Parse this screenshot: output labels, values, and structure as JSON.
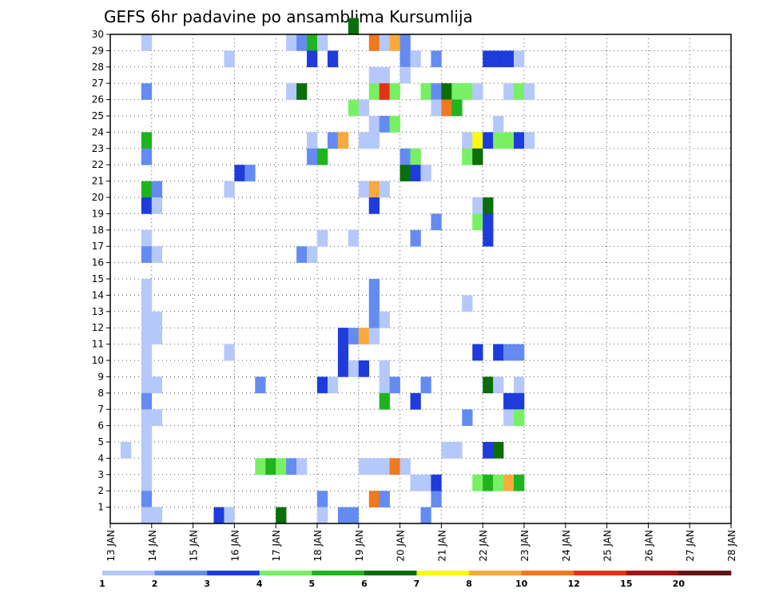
{
  "chart_data": {
    "type": "heatmap",
    "title": "GEFS 6hr padavine po ansamblima Kursumlija",
    "xlabel": "",
    "ylabel": "",
    "x_tick_labels": [
      "13 JAN",
      "14 JAN",
      "15 JAN",
      "16 JAN",
      "17 JAN",
      "18 JAN",
      "19 JAN",
      "20 JAN",
      "21 JAN",
      "22 JAN",
      "23 JAN",
      "24 JAN",
      "25 JAN",
      "26 JAN",
      "27 JAN",
      "28 JAN"
    ],
    "y_tick_labels": [
      "1",
      "2",
      "3",
      "4",
      "5",
      "6",
      "7",
      "8",
      "9",
      "10",
      "11",
      "12",
      "13",
      "14",
      "15",
      "16",
      "17",
      "18",
      "19",
      "20",
      "21",
      "22",
      "23",
      "24",
      "25",
      "26",
      "27",
      "28",
      "29",
      "30"
    ],
    "x_range": [
      0,
      60
    ],
    "y_range": [
      0,
      30
    ],
    "grid": true,
    "colorbar": {
      "labels": [
        "1",
        "2",
        "3",
        "4",
        "5",
        "6",
        "7",
        "8",
        "10",
        "12",
        "15",
        "20"
      ],
      "colors": [
        "#b4c8fa",
        "#648cf0",
        "#1e3cdc",
        "#78f064",
        "#1eb41e",
        "#0a6e0a",
        "#fafa14",
        "#faaa3c",
        "#f0781e",
        "#e63214",
        "#a01414",
        "#641414"
      ]
    },
    "cells": [
      [
        3,
        29,
        1
      ],
      [
        3,
        26,
        2
      ],
      [
        3,
        23,
        5
      ],
      [
        3,
        22,
        2
      ],
      [
        3,
        20,
        5
      ],
      [
        4,
        20,
        2
      ],
      [
        3,
        19,
        3
      ],
      [
        4,
        19,
        1
      ],
      [
        3,
        17,
        1
      ],
      [
        3,
        16,
        2
      ],
      [
        4,
        16,
        1
      ],
      [
        3,
        14,
        1
      ],
      [
        3,
        13,
        1
      ],
      [
        3,
        12,
        1
      ],
      [
        4,
        12,
        1
      ],
      [
        3,
        11,
        1
      ],
      [
        4,
        11,
        1
      ],
      [
        3,
        10,
        1
      ],
      [
        3,
        9,
        1
      ],
      [
        3,
        8,
        1
      ],
      [
        4,
        8,
        1
      ],
      [
        3,
        7,
        2
      ],
      [
        3,
        6,
        1
      ],
      [
        4,
        6,
        1
      ],
      [
        3,
        5,
        1
      ],
      [
        3,
        4,
        1
      ],
      [
        3,
        3,
        1
      ],
      [
        3,
        2,
        1
      ],
      [
        3,
        1,
        2
      ],
      [
        3,
        0,
        1
      ],
      [
        4,
        0,
        1
      ],
      [
        1,
        4,
        1
      ],
      [
        11,
        28,
        1
      ],
      [
        12,
        21,
        3
      ],
      [
        13,
        21,
        2
      ],
      [
        11,
        20,
        1
      ],
      [
        11,
        10,
        1
      ],
      [
        10,
        0,
        3
      ],
      [
        11,
        0,
        1
      ],
      [
        14,
        8,
        2
      ],
      [
        14,
        3,
        4
      ],
      [
        15,
        3,
        5
      ],
      [
        16,
        3,
        4
      ],
      [
        17,
        3,
        2
      ],
      [
        18,
        3,
        1
      ],
      [
        16,
        0,
        6
      ],
      [
        17,
        26,
        1
      ],
      [
        18,
        26,
        6
      ],
      [
        17,
        29,
        1
      ],
      [
        18,
        29,
        2
      ],
      [
        19,
        29,
        5
      ],
      [
        20,
        29,
        1
      ],
      [
        19,
        28,
        3
      ],
      [
        21,
        28,
        3
      ],
      [
        18,
        16,
        2
      ],
      [
        19,
        16,
        1
      ],
      [
        20,
        17,
        1
      ],
      [
        19,
        23,
        1
      ],
      [
        19,
        22,
        2
      ],
      [
        20,
        22,
        5
      ],
      [
        20,
        8,
        3
      ],
      [
        21,
        8,
        1
      ],
      [
        20,
        1,
        2
      ],
      [
        20,
        0,
        1
      ],
      [
        21,
        23,
        2
      ],
      [
        22,
        23,
        8
      ],
      [
        23,
        30,
        6
      ],
      [
        23,
        17,
        1
      ],
      [
        22,
        11,
        3
      ],
      [
        23,
        11,
        2
      ],
      [
        22,
        10,
        3
      ],
      [
        22,
        9,
        3
      ],
      [
        23,
        9,
        1
      ],
      [
        22,
        0,
        2
      ],
      [
        23,
        0,
        2
      ],
      [
        23,
        25,
        4
      ],
      [
        24,
        25,
        1
      ],
      [
        25,
        29,
        9
      ],
      [
        26,
        29,
        1
      ],
      [
        27,
        29,
        8
      ],
      [
        28,
        29,
        2
      ],
      [
        25,
        27,
        1
      ],
      [
        26,
        27,
        1
      ],
      [
        25,
        26,
        4
      ],
      [
        26,
        26,
        10
      ],
      [
        27,
        26,
        4
      ],
      [
        25,
        24,
        1
      ],
      [
        26,
        24,
        2
      ],
      [
        27,
        24,
        4
      ],
      [
        25,
        23,
        1
      ],
      [
        24,
        23,
        1
      ],
      [
        24,
        20,
        1
      ],
      [
        25,
        20,
        8
      ],
      [
        26,
        20,
        1
      ],
      [
        24,
        11,
        8
      ],
      [
        25,
        11,
        1
      ],
      [
        25,
        19,
        3
      ],
      [
        25,
        13,
        2
      ],
      [
        25,
        12,
        2
      ],
      [
        26,
        12,
        1
      ],
      [
        25,
        14,
        2
      ],
      [
        24,
        9,
        3
      ],
      [
        26,
        9,
        1
      ],
      [
        26,
        8,
        1
      ],
      [
        27,
        8,
        2
      ],
      [
        26,
        7,
        5
      ],
      [
        24,
        3,
        1
      ],
      [
        25,
        3,
        1
      ],
      [
        26,
        3,
        1
      ],
      [
        27,
        3,
        9
      ],
      [
        28,
        3,
        1
      ],
      [
        25,
        1,
        9
      ],
      [
        26,
        1,
        2
      ],
      [
        28,
        28,
        2
      ],
      [
        29,
        28,
        1
      ],
      [
        28,
        27,
        1
      ],
      [
        28,
        22,
        2
      ],
      [
        29,
        22,
        4
      ],
      [
        28,
        21,
        6
      ],
      [
        29,
        21,
        3
      ],
      [
        30,
        21,
        1
      ],
      [
        29,
        17,
        2
      ],
      [
        31,
        28,
        2
      ],
      [
        30,
        26,
        4
      ],
      [
        31,
        26,
        2
      ],
      [
        32,
        26,
        6
      ],
      [
        33,
        26,
        4
      ],
      [
        34,
        26,
        4
      ],
      [
        35,
        26,
        1
      ],
      [
        31,
        25,
        1
      ],
      [
        32,
        25,
        9
      ],
      [
        33,
        25,
        5
      ],
      [
        31,
        18,
        2
      ],
      [
        30,
        8,
        2
      ],
      [
        29,
        7,
        3
      ],
      [
        31,
        1,
        2
      ],
      [
        29,
        2,
        1
      ],
      [
        30,
        2,
        1
      ],
      [
        31,
        2,
        3
      ],
      [
        30,
        0,
        2
      ],
      [
        32,
        4,
        1
      ],
      [
        34,
        23,
        1
      ],
      [
        35,
        23,
        7
      ],
      [
        36,
        23,
        3
      ],
      [
        37,
        23,
        4
      ],
      [
        38,
        23,
        4
      ],
      [
        39,
        23,
        3
      ],
      [
        40,
        23,
        1
      ],
      [
        34,
        22,
        4
      ],
      [
        35,
        22,
        6
      ],
      [
        35,
        19,
        1
      ],
      [
        36,
        19,
        6
      ],
      [
        35,
        18,
        4
      ],
      [
        36,
        18,
        3
      ],
      [
        36,
        17,
        3
      ],
      [
        34,
        13,
        1
      ],
      [
        35,
        10,
        3
      ],
      [
        37,
        10,
        3
      ],
      [
        38,
        10,
        2
      ],
      [
        39,
        10,
        2
      ],
      [
        36,
        8,
        6
      ],
      [
        37,
        8,
        1
      ],
      [
        39,
        8,
        1
      ],
      [
        38,
        7,
        3
      ],
      [
        39,
        7,
        3
      ],
      [
        34,
        6,
        2
      ],
      [
        38,
        6,
        1
      ],
      [
        39,
        6,
        4
      ],
      [
        33,
        4,
        1
      ],
      [
        36,
        4,
        3
      ],
      [
        37,
        4,
        6
      ],
      [
        35,
        2,
        4
      ],
      [
        36,
        2,
        5
      ],
      [
        37,
        2,
        4
      ],
      [
        38,
        2,
        8
      ],
      [
        39,
        2,
        5
      ],
      [
        36,
        28,
        3
      ],
      [
        37,
        28,
        3
      ],
      [
        38,
        28,
        3
      ],
      [
        39,
        28,
        1
      ],
      [
        37,
        24,
        1
      ],
      [
        38,
        26,
        1
      ],
      [
        39,
        26,
        4
      ],
      [
        40,
        26,
        1
      ]
    ]
  }
}
